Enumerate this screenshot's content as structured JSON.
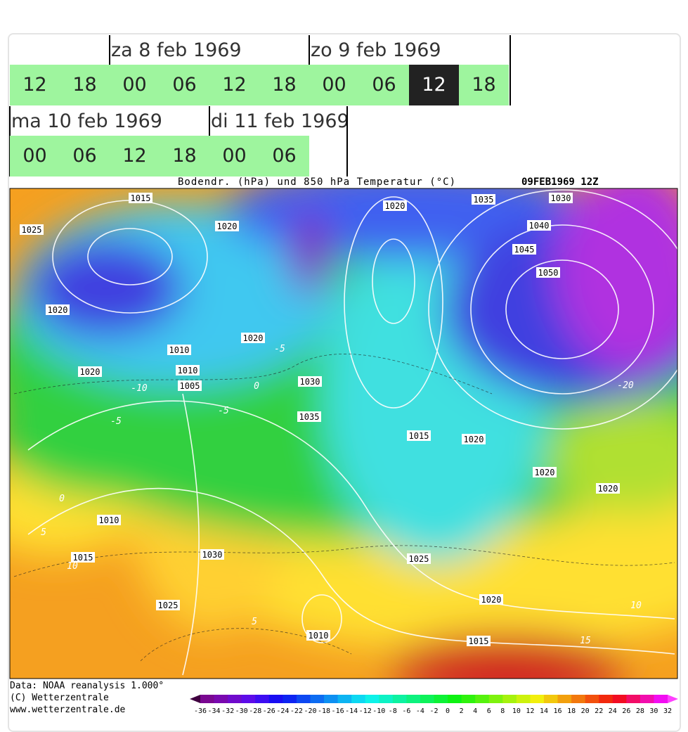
{
  "tabs": {
    "rows": [
      {
        "days": [
          "za 8 feb 1969",
          "zo 9 feb 1969"
        ],
        "hours": [
          "12",
          "18",
          "00",
          "06",
          "12",
          "18",
          "00",
          "06",
          "12",
          "18"
        ]
      },
      {
        "days": [
          "ma 10 feb 1969",
          "di 11 feb 1969"
        ],
        "hours": [
          "00",
          "06",
          "12",
          "18",
          "00",
          "06"
        ]
      }
    ],
    "selected_row": 0,
    "selected_hour": 8
  },
  "map": {
    "title": "Bodendr. (hPa) und 850 hPa Temperatur (°C)",
    "timestamp": "09FEB1969 12Z",
    "isobar_labels": [
      "1015",
      "1025",
      "1020",
      "1020",
      "1010",
      "1020",
      "1010",
      "1005",
      "1020",
      "1030",
      "1035",
      "1020",
      "1035",
      "1030",
      "1040",
      "1045",
      "1050",
      "1015",
      "1020",
      "1020",
      "1020",
      "1010",
      "1015",
      "1030",
      "1025",
      "1025",
      "1020",
      "1010",
      "1015"
    ],
    "temperature_labels": [
      "-5",
      "0",
      "-10",
      "-5",
      "-5",
      "0",
      "5",
      "10",
      "5",
      "10",
      "15",
      "-20"
    ]
  },
  "footer": {
    "source": "Data: NOAA reanalysis 1.000°",
    "copyright": "(C) Wetterzentrale",
    "url": "www.wetterzentrale.de"
  },
  "scale": [
    -36,
    -34,
    -32,
    -30,
    -28,
    -26,
    -24,
    -22,
    -20,
    -18,
    -16,
    -14,
    -12,
    -10,
    -8,
    -6,
    -4,
    -2,
    0,
    2,
    4,
    6,
    8,
    10,
    12,
    14,
    16,
    18,
    20,
    22,
    24,
    26,
    28,
    30,
    32
  ]
}
